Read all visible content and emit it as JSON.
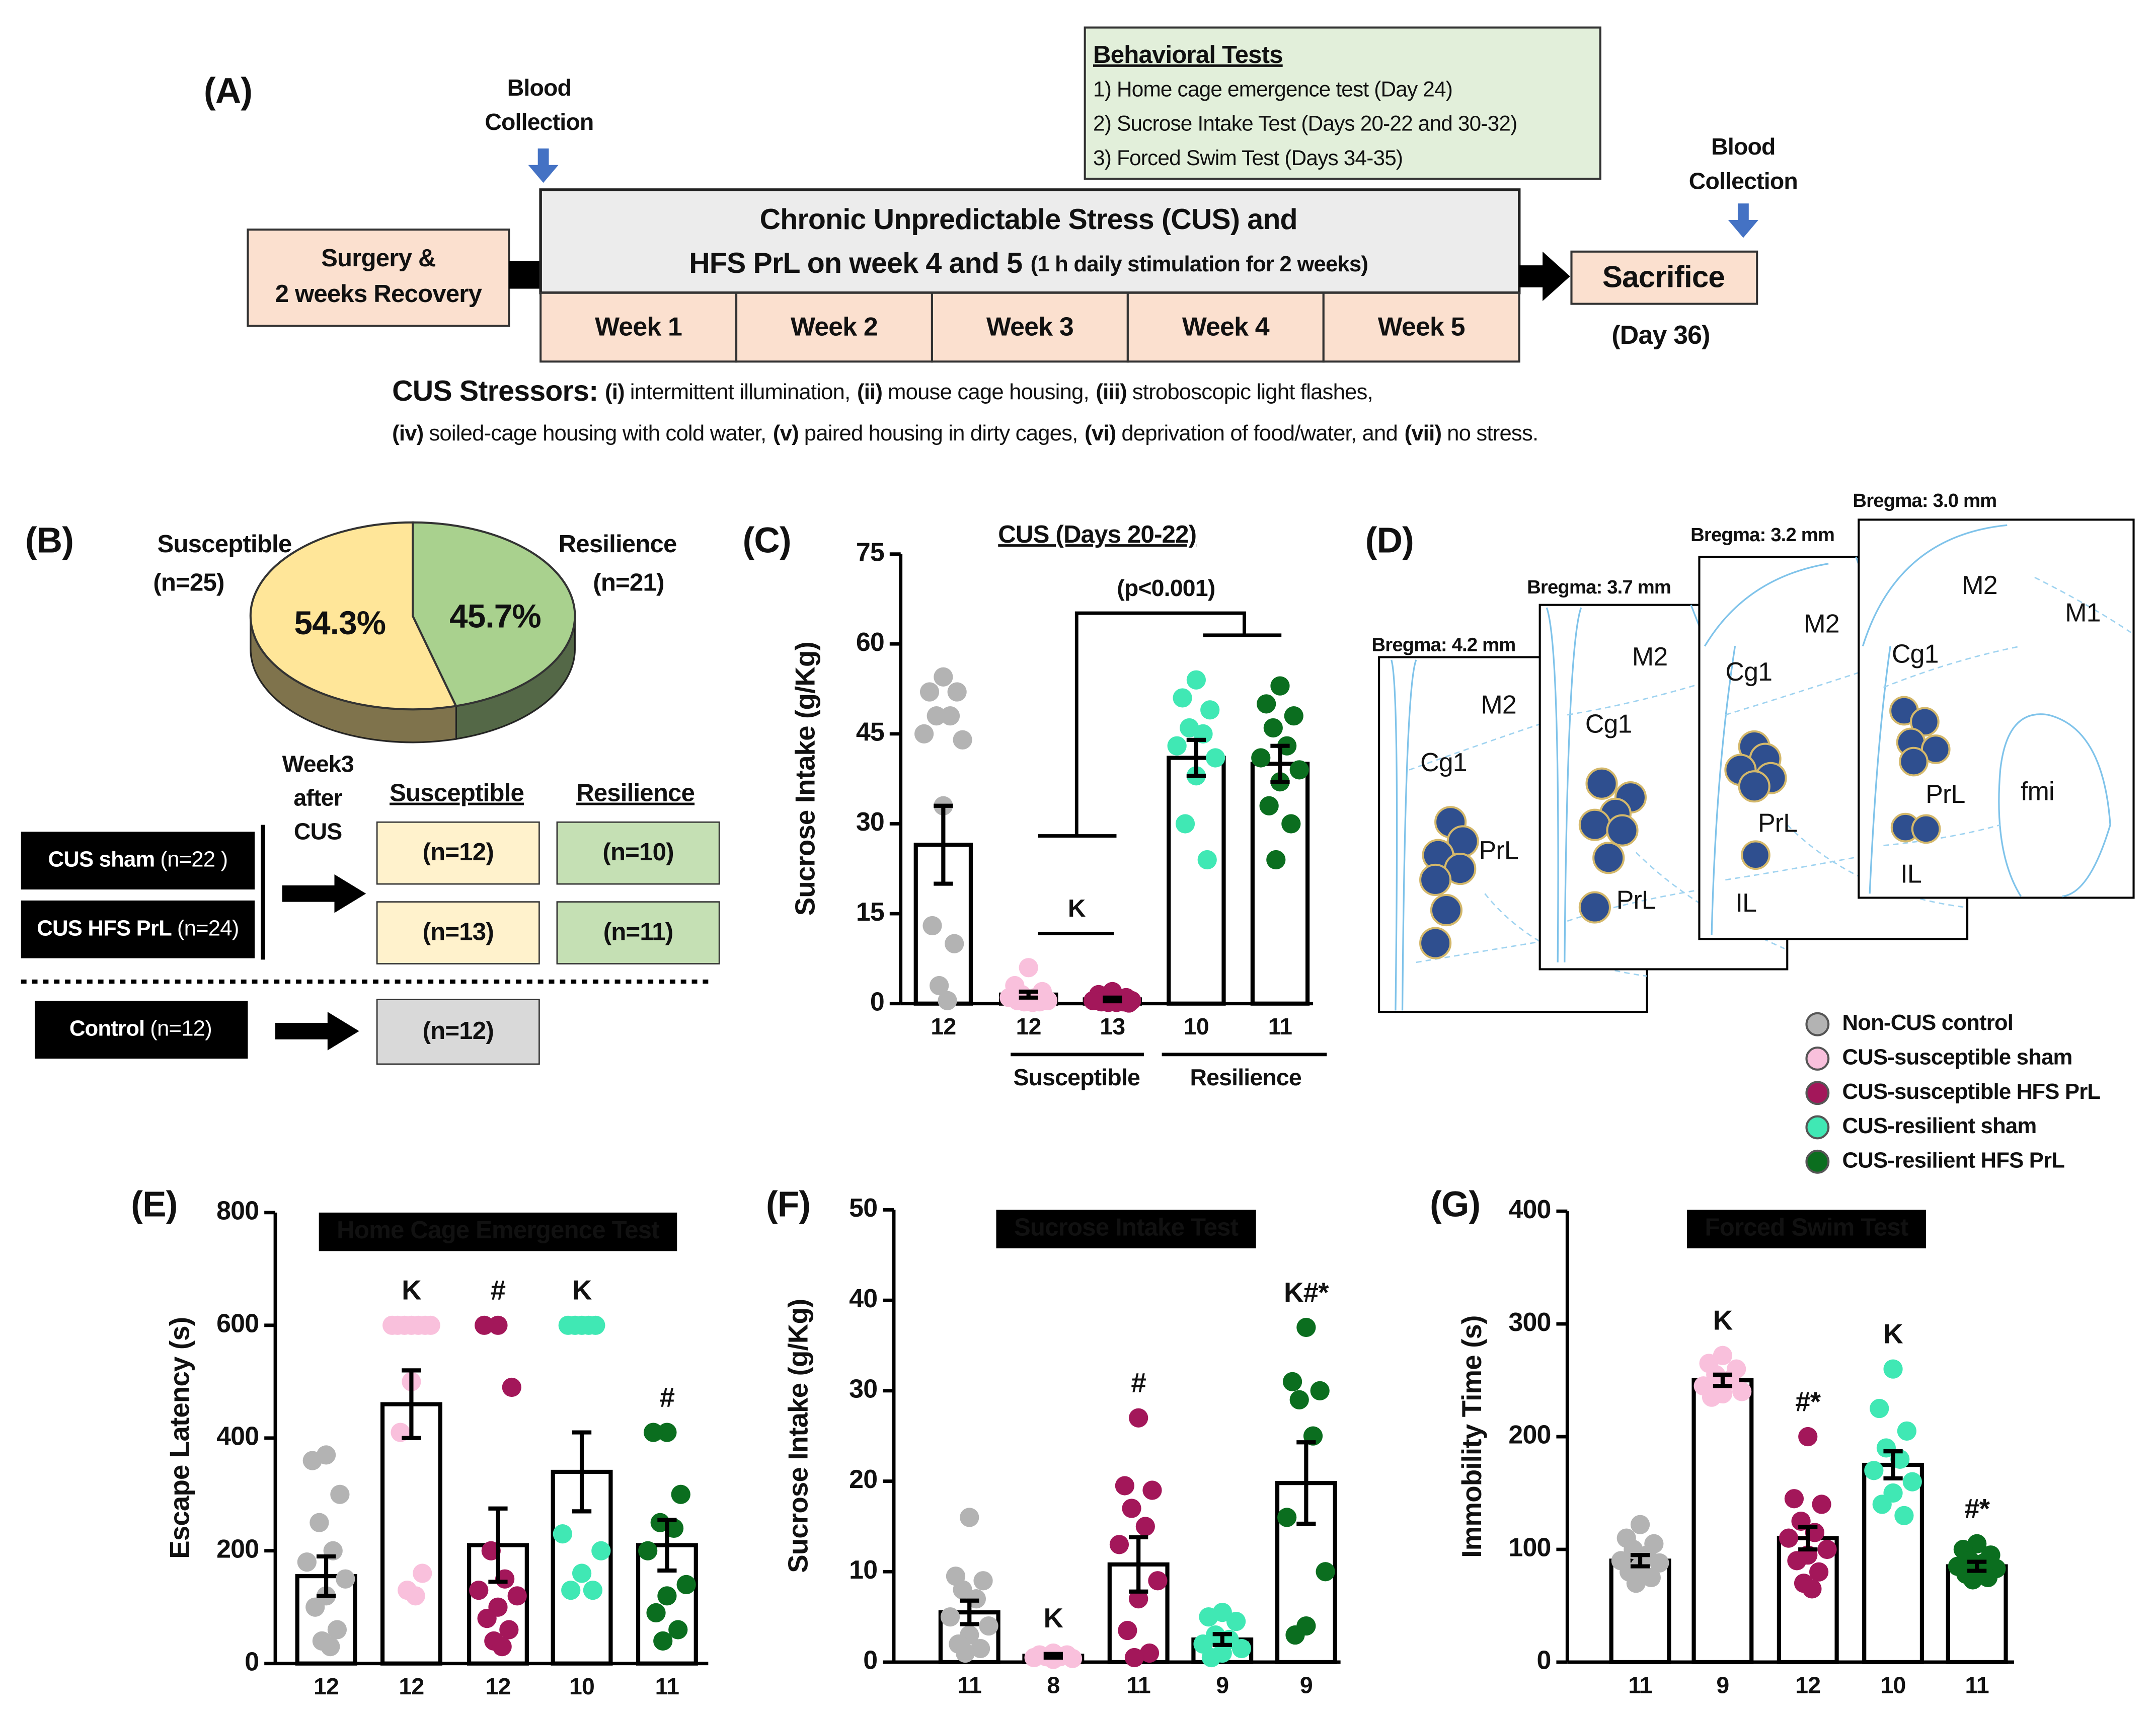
{
  "panel_labels": [
    "(A)",
    "(B)",
    "(C)",
    "(D)",
    "(E)",
    "(F)",
    "(G)"
  ],
  "panel_a": {
    "blood_collection": [
      "Blood",
      "Collection"
    ],
    "behavioral": {
      "title": "Behavioral Tests",
      "items": [
        "1) Home cage emergence test  (Day 24)",
        "2) Sucrose Intake Test (Days 20-22 and 30-32)",
        "3) Forced Swim Test (Days 34-35)"
      ]
    },
    "surgery": [
      "Surgery &",
      "2 weeks Recovery"
    ],
    "cus": {
      "line1": "Chronic Unpredictable Stress (CUS) and",
      "line2": "HFS PrL on week 4 and 5",
      "line2_note": "(1 h daily stimulation for 2 weeks)"
    },
    "weeks": [
      "Week 1",
      "Week 2",
      "Week 3",
      "Week 4",
      "Week 5"
    ],
    "sacrifice": "Sacrifice",
    "day": "(Day 36)",
    "stressors_title": "CUS Stressors:",
    "stressors": [
      [
        {
          "num": "(i)",
          "text": "intermittent illumination,"
        },
        {
          "num": "(ii)",
          "text": "mouse cage housing,"
        },
        {
          "num": "(iii)",
          "text": "stroboscopic light flashes,"
        }
      ],
      [
        {
          "num": "(iv)",
          "text": "soiled-cage housing with cold water,"
        },
        {
          "num": "(v)",
          "text": "paired housing in dirty cages,"
        },
        {
          "num": "(vi)",
          "text": "deprivation of food/water, and"
        },
        {
          "num": "(vii)",
          "text": "no stress."
        }
      ]
    ]
  },
  "panel_b": {
    "after": [
      "Week3",
      "after",
      "CUS"
    ],
    "groups": [
      {
        "name": "CUS sham",
        "n": "(n=22 )"
      },
      {
        "name": "CUS HFS PrL",
        "n": "(n=24)"
      },
      {
        "name": "Control",
        "n": "(n=12)"
      }
    ],
    "cells": [
      [
        "(n=12)",
        "(n=10)"
      ],
      [
        "(n=13)",
        "(n=11)"
      ],
      [
        "(n=12)"
      ]
    ]
  },
  "panel_d": {
    "slices": [
      {
        "bregma": "Bregma: 4.2 mm",
        "regions": [
          "M2",
          "Cg1",
          "PrL"
        ]
      },
      {
        "bregma": "Bregma: 3.7 mm",
        "regions": [
          "M2",
          "Cg1",
          "PrL"
        ]
      },
      {
        "bregma": "Bregma: 3.2 mm",
        "regions": [
          "M2",
          "Cg1",
          "PrL",
          "IL"
        ]
      },
      {
        "bregma": "Bregma: 3.0 mm",
        "regions": [
          "M2",
          "M1",
          "Cg1",
          "PrL",
          "fmi",
          "IL"
        ]
      }
    ]
  },
  "legend": [
    {
      "name": "Non-CUS control",
      "color": "#b3b3b3"
    },
    {
      "name": "CUS-susceptible sham",
      "color": "#f9c0dc"
    },
    {
      "name": "CUS-susceptible HFS PrL",
      "color": "#a3175a"
    },
    {
      "name": "CUS-resilient sham",
      "color": "#40e8b4"
    },
    {
      "name": "CUS-resilient HFS PrL",
      "color": "#0b6e1f"
    }
  ],
  "chart_data": [
    {
      "type": "pie",
      "categories": [
        "Susceptible",
        "Resilience"
      ],
      "counts": [
        "(n=25)",
        "(n=21)"
      ],
      "values": [
        54.3,
        45.7
      ],
      "value_labels": [
        "54.3%",
        "45.7%"
      ],
      "colors": [
        "#ffe699",
        "#a9d18e"
      ],
      "label_colors": [
        "#c09020",
        "#1f2fa0"
      ]
    },
    {
      "type": "bar",
      "title": "CUS (Days 20-22)",
      "ylabel": "Sucrose Intake (g/Kg)",
      "categories": [
        "12",
        "12",
        "13",
        "10",
        "11"
      ],
      "groups": [
        "Susceptible",
        "Resilience"
      ],
      "annotations": [
        "K",
        "(p<0.001)"
      ],
      "values": [
        26.5,
        1.5,
        0.7,
        41,
        40
      ],
      "errors": [
        6.5,
        0.5,
        0.3,
        3,
        3
      ],
      "points": [
        [
          54.5,
          52,
          52,
          48,
          48,
          45,
          44,
          33,
          13,
          10,
          3,
          0.5
        ],
        [
          6,
          3,
          2,
          1.5,
          1,
          1,
          0.5,
          0.5,
          0.5,
          0.3,
          0.3,
          0.2
        ],
        [
          2,
          1.5,
          1,
          1,
          0.8,
          0.5,
          0.5,
          0.5,
          0.3,
          0.3,
          0.2,
          0.2,
          0.1
        ],
        [
          54,
          51,
          49,
          46,
          45,
          43,
          41,
          38,
          30,
          24
        ],
        [
          53,
          50,
          48,
          46,
          43,
          41,
          39,
          37,
          33,
          30,
          24
        ]
      ],
      "ylim": [
        0,
        75
      ],
      "yticks": [
        0,
        15,
        30,
        45,
        60,
        75
      ]
    },
    {
      "type": "bar",
      "title": "Home Cage Emergence Test",
      "ylabel": "Escape Latency (s)",
      "categories": [
        "12",
        "12",
        "12",
        "10",
        "11"
      ],
      "annotations": [
        null,
        "K",
        "#",
        "K",
        "#"
      ],
      "values": [
        155,
        460,
        210,
        340,
        210
      ],
      "errors": [
        35,
        60,
        65,
        70,
        45
      ],
      "points": [
        [
          370,
          360,
          300,
          250,
          200,
          180,
          150,
          120,
          100,
          60,
          40,
          30
        ],
        [
          600,
          600,
          600,
          600,
          600,
          600,
          600,
          500,
          410,
          160,
          130,
          120
        ],
        [
          600,
          600,
          490,
          200,
          150,
          130,
          120,
          100,
          80,
          60,
          40,
          30
        ],
        [
          600,
          600,
          600,
          600,
          600,
          230,
          200,
          160,
          130,
          130
        ],
        [
          410,
          410,
          300,
          250,
          240,
          200,
          140,
          120,
          90,
          60,
          40
        ]
      ],
      "ylim": [
        0,
        800
      ],
      "yticks": [
        0,
        200,
        400,
        600,
        800
      ]
    },
    {
      "type": "bar",
      "title": "Sucrose Intake  Test",
      "ylabel": "Sucrose Intake (g/Kg)",
      "categories": [
        "11",
        "8",
        "11",
        "9",
        "9"
      ],
      "annotations": [
        null,
        "K",
        "#",
        null,
        "K#*"
      ],
      "values": [
        5.5,
        0.7,
        10.8,
        2.5,
        19.8
      ],
      "errors": [
        1.3,
        0.2,
        3,
        0.6,
        4.5
      ],
      "points": [
        [
          16,
          9.5,
          9,
          8,
          7,
          5,
          4,
          3,
          2,
          1.5,
          1
        ],
        [
          1,
          0.8,
          0.8,
          0.6,
          0.6,
          0.5,
          0.4,
          0.3
        ],
        [
          27,
          19.5,
          19,
          17,
          15,
          13,
          9,
          7,
          3.5,
          1,
          0.5
        ],
        [
          5.5,
          5,
          4.5,
          3,
          2.5,
          2,
          1.5,
          1,
          0.5
        ],
        [
          37,
          31,
          30,
          29,
          25,
          16,
          10,
          4,
          3
        ]
      ],
      "ylim": [
        0,
        50
      ],
      "yticks": [
        0,
        10,
        20,
        30,
        40,
        50
      ]
    },
    {
      "type": "bar",
      "title": "Forced Swim Test",
      "ylabel": "Immobility Time (s)",
      "categories": [
        "11",
        "9",
        "12",
        "10",
        "11"
      ],
      "annotations": [
        null,
        "K",
        "#*",
        "K",
        "#*"
      ],
      "values": [
        90,
        250,
        110,
        175,
        85
      ],
      "errors": [
        5,
        5,
        10,
        12,
        4
      ],
      "points": [
        [
          122,
          110,
          105,
          100,
          95,
          90,
          88,
          85,
          80,
          75,
          70
        ],
        [
          272,
          265,
          260,
          255,
          250,
          245,
          240,
          238,
          235
        ],
        [
          200,
          145,
          140,
          125,
          115,
          110,
          100,
          95,
          90,
          80,
          70,
          65
        ],
        [
          260,
          225,
          205,
          190,
          180,
          170,
          160,
          150,
          140,
          130
        ],
        [
          105,
          100,
          95,
          90,
          88,
          85,
          83,
          80,
          78,
          75,
          73
        ]
      ],
      "ylim": [
        0,
        400
      ],
      "yticks": [
        0,
        100,
        200,
        300,
        400
      ]
    }
  ]
}
